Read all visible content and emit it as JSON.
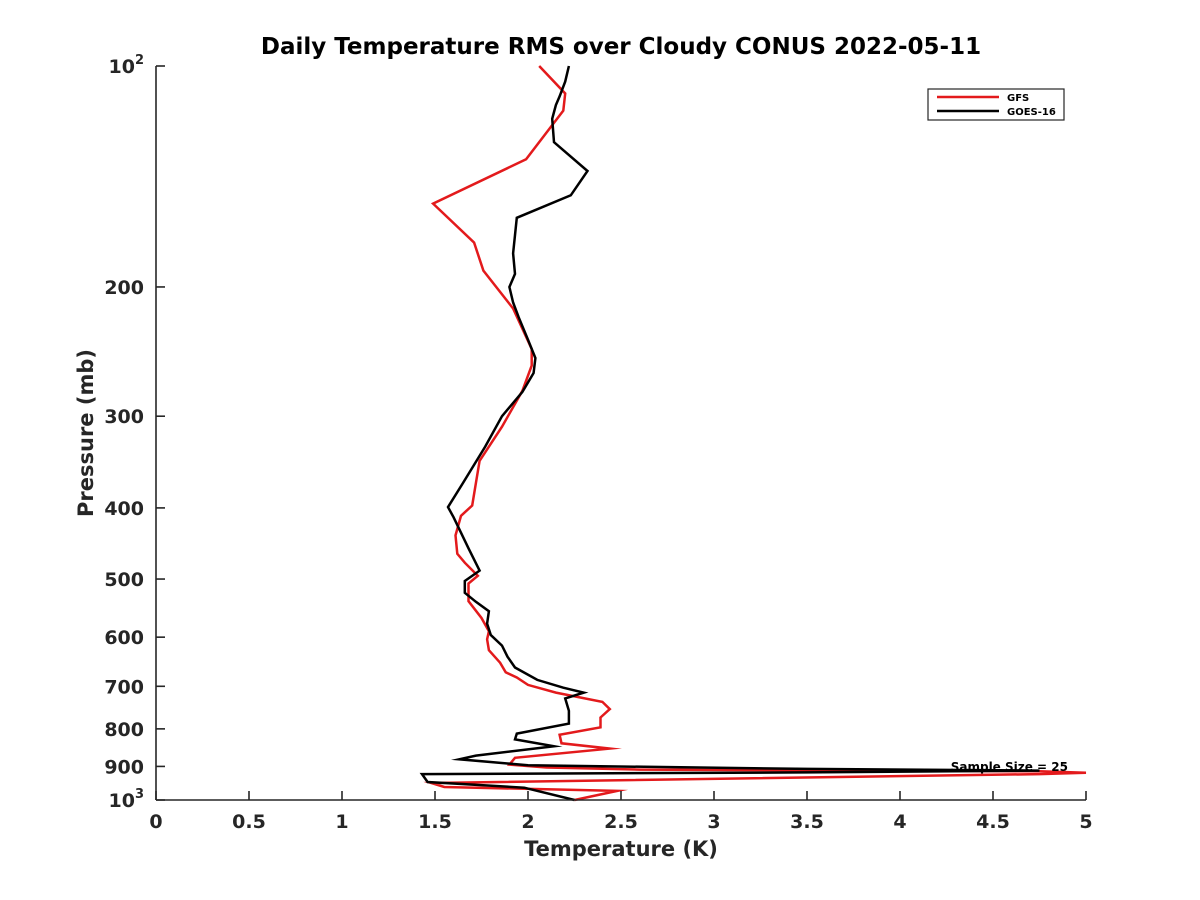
{
  "chart_data": {
    "type": "line",
    "title": "Daily Temperature RMS over Cloudy CONUS 2022-05-11",
    "xlabel": "Temperature (K)",
    "ylabel": "Pressure (mb)",
    "xlim": [
      0,
      5
    ],
    "ylim": [
      100,
      1000
    ],
    "y_scale": "log",
    "y_reversed": true,
    "grid": false,
    "legend_position": "top-right",
    "x_ticks": [
      0,
      0.5,
      1,
      1.5,
      2,
      2.5,
      3,
      3.5,
      4,
      4.5,
      5
    ],
    "x_tick_labels": [
      "0",
      "0.5",
      "1",
      "1.5",
      "2",
      "2.5",
      "3",
      "3.5",
      "4",
      "4.5",
      "5"
    ],
    "y_ticks": [
      100,
      200,
      300,
      400,
      500,
      600,
      700,
      800,
      900,
      1000
    ],
    "y_tick_labels": [
      {
        "base": "10",
        "exp": "2"
      },
      {
        "base": "200",
        "exp": ""
      },
      {
        "base": "300",
        "exp": ""
      },
      {
        "base": "400",
        "exp": ""
      },
      {
        "base": "500",
        "exp": ""
      },
      {
        "base": "600",
        "exp": ""
      },
      {
        "base": "700",
        "exp": ""
      },
      {
        "base": "800",
        "exp": ""
      },
      {
        "base": "900",
        "exp": ""
      },
      {
        "base": "10",
        "exp": "3"
      }
    ],
    "annotation": "Sample Size = 25",
    "series": [
      {
        "name": "GFS",
        "color": "#e31a1c",
        "x": [
          2.06,
          2.2,
          2.19,
          1.99,
          1.49,
          1.71,
          1.76,
          1.92,
          2.02,
          2.02,
          1.97,
          1.86,
          1.74,
          1.72,
          1.7,
          1.64,
          1.61,
          1.62,
          1.66,
          1.73,
          1.68,
          1.68,
          1.75,
          1.79,
          1.78,
          1.79,
          1.85,
          1.88,
          1.94,
          2.0,
          2.15,
          2.4,
          2.44,
          2.39,
          2.39,
          2.17,
          2.18,
          2.44,
          1.93,
          1.9,
          2.1,
          2.6,
          4.75,
          5.0,
          4.75,
          1.48,
          1.55,
          2.48,
          2.25
        ],
        "y": [
          100,
          109,
          115,
          134,
          154,
          174,
          190,
          214,
          243,
          256,
          277,
          310,
          345,
          370,
          397,
          410,
          436,
          462,
          475,
          495,
          507,
          536,
          565,
          589,
          604,
          625,
          650,
          670,
          681,
          697,
          714,
          735,
          752,
          772,
          796,
          815,
          837,
          851,
          876,
          895,
          903,
          909,
          914,
          918,
          922,
          948,
          960,
          972,
          1000
        ]
      },
      {
        "name": "GOES-16",
        "color": "#000000",
        "x": [
          2.22,
          2.2,
          2.17,
          2.15,
          2.13,
          2.14,
          2.32,
          2.23,
          1.94,
          1.93,
          1.92,
          1.93,
          1.9,
          1.92,
          1.95,
          2.0,
          2.04,
          2.03,
          1.97,
          1.86,
          1.77,
          1.65,
          1.57,
          1.6,
          1.68,
          1.74,
          1.66,
          1.66,
          1.72,
          1.79,
          1.78,
          1.8,
          1.86,
          1.89,
          1.93,
          2.05,
          2.19,
          2.3,
          2.2,
          2.22,
          2.22,
          1.94,
          1.93,
          2.14,
          1.72,
          1.63,
          2.0,
          3.5,
          4.75,
          3.5,
          1.43,
          1.46,
          1.98,
          2.25
        ],
        "y": [
          100,
          105,
          110,
          113,
          118,
          127,
          139,
          150,
          161,
          170,
          180,
          192,
          200,
          210,
          220,
          236,
          250,
          262,
          278,
          300,
          330,
          370,
          399,
          412,
          454,
          487,
          503,
          522,
          537,
          553,
          575,
          596,
          616,
          638,
          660,
          686,
          703,
          714,
          727,
          756,
          787,
          812,
          827,
          845,
          870,
          880,
          897,
          907,
          912,
          917,
          922,
          945,
          962,
          1000
        ]
      }
    ]
  }
}
